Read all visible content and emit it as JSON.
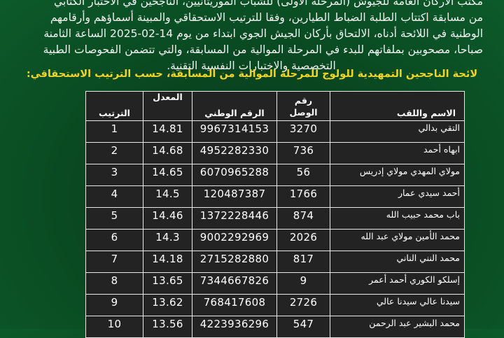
{
  "intro": {
    "lines": [
      "مكتب الأركان العامة للجيوش (المرحلة الأولى) للشباب الموريتانيين، الناجحين في الاختبار الكتابي",
      "من مسابقة اكتتاب الطلبة الضباط الطيارين، وفقا للترتيب الاستحقاقي والمبينة أسماؤهم وأرقامهم",
      "الوطنية في اللائحة أدناه، الالتحاق بأركان الجيش الجوي ابتداء من يوم 14-02-2025 الساعة الثامنة",
      "صباحا، مصحوبين بملفاتهم للبدء في المرحلة الموالية من المسابقة، والتي تتضمن الفحوصات الطبية",
      "التخصصية والاختبارات النفسية التقنية."
    ]
  },
  "heading": "لائحة الناجحين التمهيدية للولوج للمرحلة الموالية من المسابقة، حسب الترتيب الاستحقاقي:",
  "table": {
    "headers": {
      "rank": "الترتيب",
      "average": "المعدل",
      "national_id": "الرقم الوطني",
      "receipt": "رقم الوصل",
      "name": "الاسم واللقب"
    },
    "rows": [
      {
        "rank": "1",
        "average": "14.81",
        "national_id": "9967314153",
        "receipt": "3270",
        "name": "التقي بدالي"
      },
      {
        "rank": "2",
        "average": "14.68",
        "national_id": "4952282330",
        "receipt": "736",
        "name": "ابهاه أحمد"
      },
      {
        "rank": "3",
        "average": "14.65",
        "national_id": "6070965288",
        "receipt": "56",
        "name": "مولاي المهدي مولاي إدريس"
      },
      {
        "rank": "4",
        "average": "14.5",
        "national_id": "120487387",
        "receipt": "1766",
        "name": "أحمد سيدي عمار"
      },
      {
        "rank": "5",
        "average": "14.46",
        "national_id": "1372228446",
        "receipt": "874",
        "name": "باب محمد حبيب الله"
      },
      {
        "rank": "6",
        "average": "14.3",
        "national_id": "9002292969",
        "receipt": "2026",
        "name": "محمد الأمين مولاي عبد الله"
      },
      {
        "rank": "7",
        "average": "14.18",
        "national_id": "2715282880",
        "receipt": "817",
        "name": "محمد النني الناني"
      },
      {
        "rank": "8",
        "average": "13.65",
        "national_id": "7344667826",
        "receipt": "9",
        "name": "إسلكو الكوري أحمد أعمر"
      },
      {
        "rank": "9",
        "average": "13.62",
        "national_id": "768417608",
        "receipt": "2726",
        "name": "سيدنا عالي سيدنا عالي"
      },
      {
        "rank": "10",
        "average": "13.56",
        "national_id": "4223936296",
        "receipt": "547",
        "name": "محمد البشير عبد الرحمن"
      }
    ]
  },
  "colors": {
    "background": "#0a4a22",
    "heading": "#f0d428",
    "table_bg": "#232323"
  }
}
